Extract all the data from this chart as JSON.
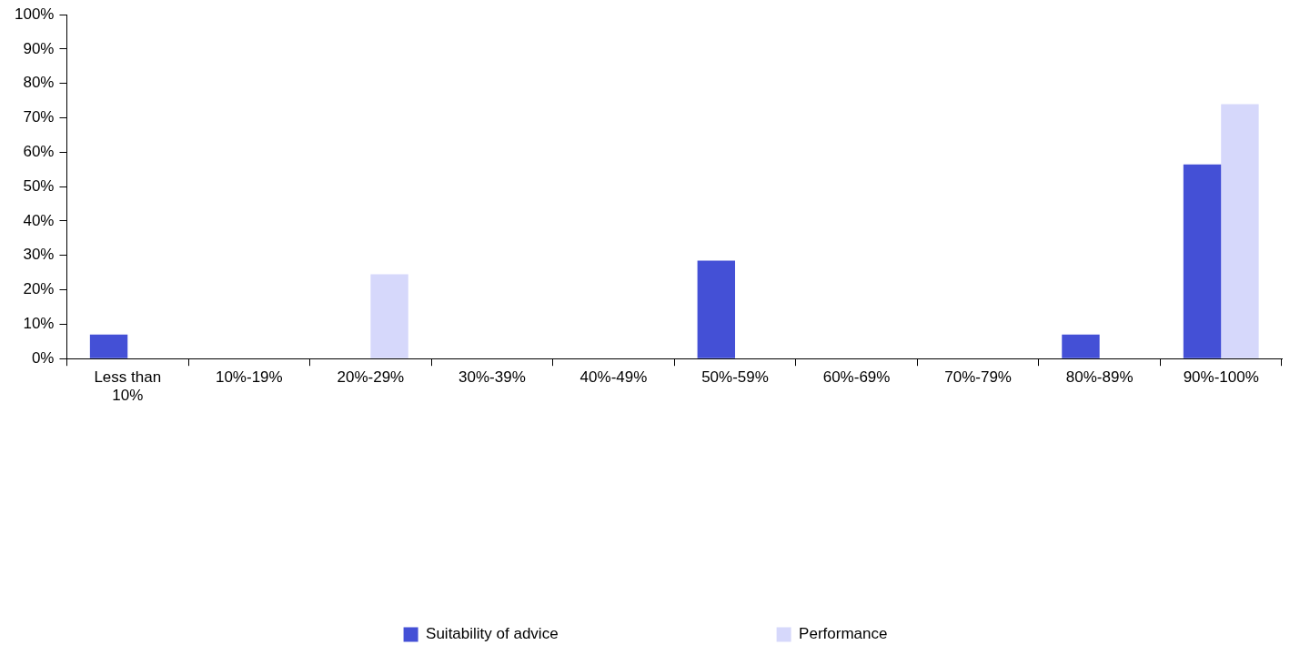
{
  "chart_data": {
    "type": "bar",
    "categories": [
      "Less than 10%",
      "10%-19%",
      "20%-29%",
      "30%-39%",
      "40%-49%",
      "50%-59%",
      "60%-69%",
      "70%-79%",
      "80%-89%",
      "90%-100%"
    ],
    "series": [
      {
        "name": "Suitability of advice",
        "color": "#4450d6",
        "values": [
          7,
          0,
          0,
          0,
          0,
          28.5,
          0,
          0,
          7,
          56.5
        ]
      },
      {
        "name": "Performance",
        "color": "#d6d8fb",
        "values": [
          0,
          0,
          24.5,
          0,
          0,
          0,
          0,
          0,
          0,
          74
        ]
      }
    ],
    "ylim": [
      0,
      100
    ],
    "yticks": [
      {
        "value": 0,
        "label": "0%"
      },
      {
        "value": 10,
        "label": "10%"
      },
      {
        "value": 20,
        "label": "20%"
      },
      {
        "value": 30,
        "label": "30%"
      },
      {
        "value": 40,
        "label": "40%"
      },
      {
        "value": 50,
        "label": "50%"
      },
      {
        "value": 60,
        "label": "60%"
      },
      {
        "value": 70,
        "label": "70%"
      },
      {
        "value": 80,
        "label": "80%"
      },
      {
        "value": 90,
        "label": "90%"
      },
      {
        "value": 100,
        "label": "100%"
      }
    ],
    "grid": false,
    "legend": "bottom"
  }
}
